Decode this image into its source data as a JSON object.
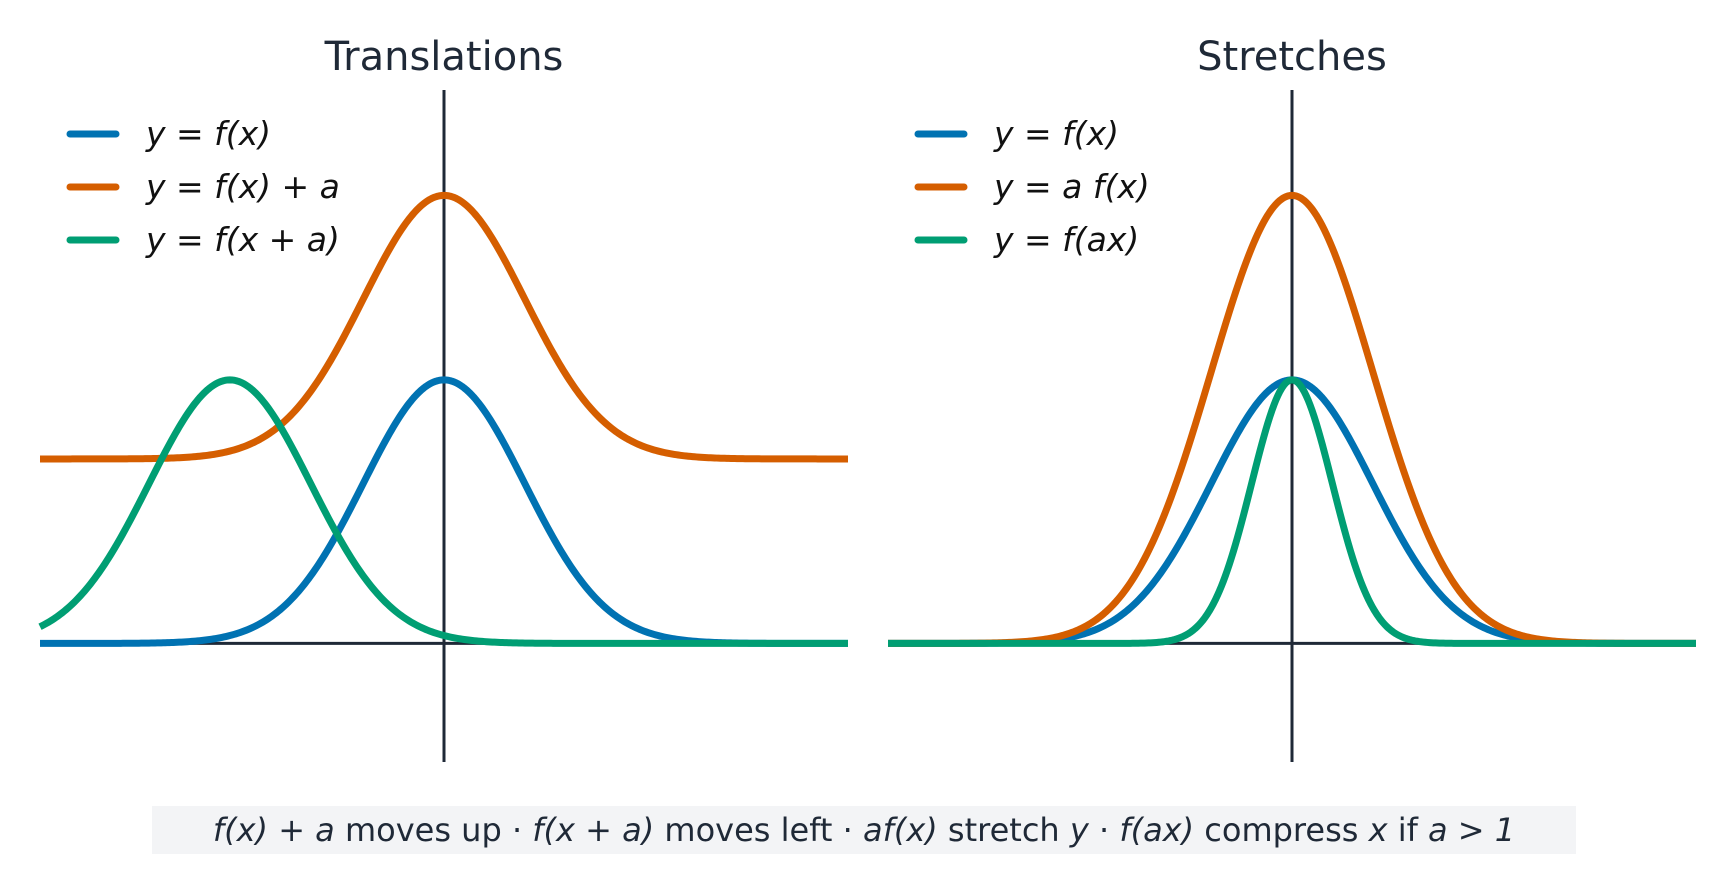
{
  "chart_data": [
    {
      "type": "line",
      "title": "Translations",
      "xlim": [
        -5,
        5
      ],
      "ylim": [
        -0.45,
        2.1
      ],
      "axes_through_origin": true,
      "grid": false,
      "legend": {
        "position": "top-left"
      },
      "series": [
        {
          "name": "y = f(x)",
          "color": "#0072B2",
          "formula": "exp(-x^2/2)"
        },
        {
          "name": "y = f(x) + a",
          "color": "#D55E00",
          "formula": "exp(-x^2/2) + 0.7"
        },
        {
          "name": "y = f(x + a)",
          "color": "#009E73",
          "formula": "exp(-(x+2.65)^2/2)"
        }
      ],
      "peaks": [
        {
          "series": "y = f(x)",
          "x": 0,
          "y": 1.0
        },
        {
          "series": "y = f(x) + a",
          "x": 0,
          "y": 1.7
        },
        {
          "series": "y = f(x + a)",
          "x": -2.65,
          "y": 1.0
        }
      ]
    },
    {
      "type": "line",
      "title": "Stretches",
      "xlim": [
        -5,
        5
      ],
      "ylim": [
        -0.45,
        2.1
      ],
      "axes_through_origin": true,
      "grid": false,
      "legend": {
        "position": "top-left"
      },
      "series": [
        {
          "name": "y = f(x)",
          "color": "#0072B2",
          "formula": "exp(-x^2/2)"
        },
        {
          "name": "y = a f(x)",
          "color": "#D55E00",
          "formula": "1.7*exp(-x^2/2)"
        },
        {
          "name": "y = f(ax)",
          "color": "#009E73",
          "formula": "exp(-(2x)^2/2)"
        }
      ],
      "peaks": [
        {
          "series": "y = f(x)",
          "x": 0,
          "y": 1.0
        },
        {
          "series": "y = a f(x)",
          "x": 0,
          "y": 1.7
        },
        {
          "series": "y = f(ax)",
          "x": 0,
          "y": 1.0
        }
      ]
    }
  ],
  "caption": {
    "items": [
      {
        "expr": "f(x) + a",
        "text": " moves up"
      },
      {
        "expr": "f(x + a)",
        "text": " moves left"
      },
      {
        "expr": "af(x)",
        "text": " stretch ",
        "var": "y"
      },
      {
        "expr": "f(ax)",
        "text": " compress ",
        "var": "x",
        "tail": " if ",
        "cond": "a > 1"
      }
    ],
    "separator": " · "
  }
}
